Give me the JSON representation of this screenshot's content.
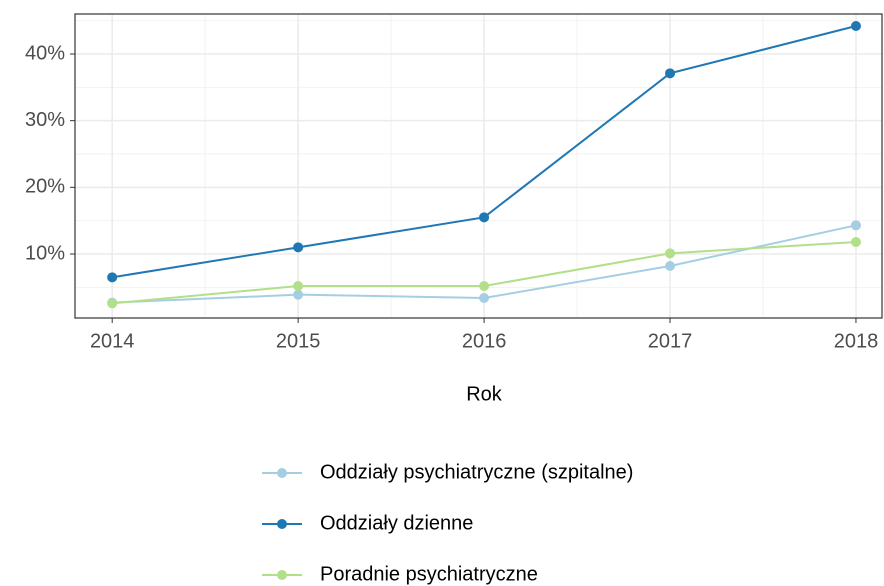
{
  "chart_data": {
    "type": "line",
    "x_label": "Rok",
    "x": [
      2014,
      2015,
      2016,
      2017,
      2018
    ],
    "series": [
      {
        "name": "Oddziały psychiatryczne (szpitalne)",
        "color": "#a6cee3",
        "values": [
          2.7,
          3.9,
          3.4,
          8.2,
          14.3
        ]
      },
      {
        "name": "Oddziały dzienne",
        "color": "#1f78b4",
        "values": [
          6.5,
          11.0,
          15.5,
          37.1,
          44.2
        ]
      },
      {
        "name": "Poradnie psychiatryczne",
        "color": "#b2df8a",
        "values": [
          2.6,
          5.2,
          5.2,
          10.1,
          11.8
        ]
      }
    ],
    "xlim": [
      2013.8,
      2018.14
    ],
    "ylim": [
      0.4,
      46
    ],
    "xticks": [
      2014,
      2015,
      2016,
      2017,
      2018
    ],
    "yticks": [
      {
        "value": 10,
        "label": "10%"
      },
      {
        "value": 20,
        "label": "20%"
      },
      {
        "value": 30,
        "label": "30%"
      },
      {
        "value": 40,
        "label": "40%"
      }
    ],
    "xminor": [
      2014.5,
      2015.5,
      2016.5,
      2017.5
    ],
    "yminor": [
      5,
      15,
      25,
      35,
      45
    ],
    "grid": true,
    "legend_position": "bottom"
  }
}
